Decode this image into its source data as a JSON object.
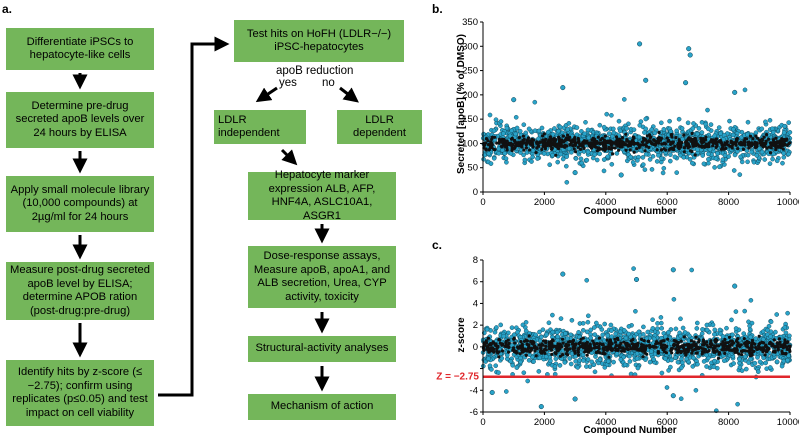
{
  "panel_a": {
    "label": "a.",
    "left_boxes": [
      "Differentiate iPSCs to hepatocyte-like cells",
      "Determine pre-drug secreted apoB levels over 24 hours by ELISA",
      "Apply small molecule library (10,000 compounds) at 2µg/ml for 24 hours",
      "Measure post-drug secreted apoB level by ELISA; determine APOB ration (post-drug:pre-drug)",
      "Identify hits by z-score (≤ −2.75); confirm using replicates (p≤0.05) and test impact on cell viability"
    ],
    "test_box": "Test hits on HoFH (LDLR−/−) iPSC-hepatocytes",
    "decision": {
      "question": "apoB reduction",
      "yes": "yes",
      "no": "no"
    },
    "ldlr_independent": "LDLR independent",
    "ldlr_dependent": "LDLR dependent",
    "right_boxes": [
      "Hepatocyte marker expression ALB, AFP, HNF4A, ASLC10A1, ASGR1",
      "Dose-response assays, Measure apoB, apoA1, and ALB secretion, Urea, CYP activity, toxicity",
      "Structural-activity analyses",
      "Mechanism of action"
    ]
  },
  "chart_data": [
    {
      "type": "scatter",
      "panel_label": "b.",
      "xlabel": "Compound Number",
      "ylabel": "Secreted [apoB] (% of DMSO)",
      "xlim": [
        0,
        10000
      ],
      "ylim": [
        0,
        350
      ],
      "xticks": [
        0,
        2000,
        4000,
        6000,
        8000,
        10000
      ],
      "yticks": [
        0,
        50,
        100,
        150,
        200,
        250,
        300,
        350
      ],
      "point_color": "#29a3c9",
      "n_points": 10000,
      "bulk_center": 100,
      "bulk_band": [
        60,
        140
      ],
      "outliers": [
        [
          5100,
          305
        ],
        [
          6700,
          295
        ],
        [
          6750,
          282
        ],
        [
          2600,
          215
        ],
        [
          6600,
          225
        ],
        [
          5300,
          230
        ],
        [
          3000,
          40
        ],
        [
          4500,
          35
        ],
        [
          8200,
          205
        ],
        [
          1000,
          190
        ]
      ]
    },
    {
      "type": "scatter",
      "panel_label": "c.",
      "xlabel": "Compound Number",
      "ylabel": "z-score",
      "xlim": [
        0,
        10000
      ],
      "ylim": [
        -6,
        8
      ],
      "xticks": [
        0,
        2000,
        4000,
        6000,
        8000,
        10000
      ],
      "yticks": [
        -6,
        -4,
        -2,
        0,
        2,
        4,
        6,
        8
      ],
      "threshold": {
        "value": -2.75,
        "label": "Z = −2.75",
        "color": "#e0262b"
      },
      "point_color": "#29a3c9",
      "n_points": 10000,
      "bulk_center": 0,
      "bulk_band": [
        -2,
        2
      ],
      "outliers": [
        [
          6200,
          7.1
        ],
        [
          2600,
          6.7
        ],
        [
          5000,
          6.2
        ],
        [
          1900,
          -5.5
        ],
        [
          3000,
          -4.8
        ],
        [
          6200,
          -4.5
        ],
        [
          8200,
          5.6
        ],
        [
          300,
          -4.2
        ]
      ]
    }
  ]
}
